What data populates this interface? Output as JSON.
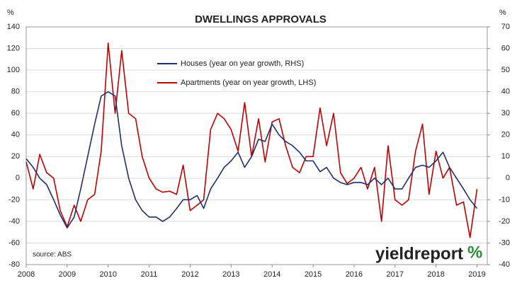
{
  "chart_data": {
    "type": "line",
    "title": "DWELLINGS APPROVALS",
    "y_unit": "%",
    "y2_unit": "%",
    "source": "source: ABS",
    "logo": "yieldreport",
    "logo_mark": "%",
    "x": [
      2008.0,
      2008.17,
      2008.33,
      2008.5,
      2008.67,
      2008.83,
      2009.0,
      2009.17,
      2009.33,
      2009.5,
      2009.67,
      2009.83,
      2010.0,
      2010.17,
      2010.33,
      2010.5,
      2010.67,
      2010.83,
      2011.0,
      2011.17,
      2011.33,
      2011.5,
      2011.67,
      2011.83,
      2012.0,
      2012.17,
      2012.33,
      2012.5,
      2012.67,
      2012.83,
      2013.0,
      2013.17,
      2013.33,
      2013.5,
      2013.67,
      2013.83,
      2014.0,
      2014.17,
      2014.33,
      2014.5,
      2014.67,
      2014.83,
      2015.0,
      2015.17,
      2015.33,
      2015.5,
      2015.67,
      2015.83,
      2016.0,
      2016.17,
      2016.33,
      2016.5,
      2016.67,
      2016.83,
      2017.0,
      2017.17,
      2017.33,
      2017.5,
      2017.67,
      2017.83,
      2018.0,
      2018.17,
      2018.33,
      2018.5,
      2018.67,
      2018.83,
      2019.0
    ],
    "series": [
      {
        "name": "Houses (year on year growth, RHS)",
        "color": "#1f2f6e",
        "axis": "y2",
        "values": [
          9,
          5,
          0,
          -3,
          -10,
          -17,
          -23,
          -18,
          -5,
          10,
          25,
          38,
          40,
          38,
          15,
          0,
          -10,
          -15,
          -18,
          -18,
          -20,
          -18,
          -14,
          -10,
          -10,
          -8,
          -14,
          -5,
          0,
          5,
          8,
          12,
          5,
          10,
          18,
          17,
          25,
          20,
          17,
          15,
          12,
          8,
          8,
          3,
          5,
          0,
          -2,
          -3,
          -2,
          -2,
          -3,
          0,
          -3,
          0,
          -5,
          -5,
          0,
          5,
          6,
          5,
          8,
          12,
          5,
          0,
          -5,
          -10,
          -14
        ]
      },
      {
        "name": "Apartments (year on year growth, LHS)",
        "color": "#c00000",
        "values": [
          15,
          -10,
          22,
          5,
          0,
          -30,
          -45,
          -25,
          -40,
          -20,
          -15,
          25,
          125,
          60,
          118,
          60,
          55,
          20,
          0,
          -10,
          -13,
          -12,
          -15,
          12,
          -30,
          -25,
          -20,
          45,
          60,
          55,
          45,
          25,
          70,
          20,
          55,
          15,
          52,
          55,
          30,
          10,
          5,
          20,
          20,
          65,
          30,
          60,
          5,
          -5,
          0,
          10,
          -10,
          10,
          -40,
          30,
          -20,
          -25,
          -20,
          25,
          50,
          -15,
          25,
          0,
          10,
          -25,
          -22,
          -55,
          -10
        ]
      }
    ],
    "xlim": [
      2008,
      2019.25
    ],
    "xticks": [
      2008,
      2009,
      2010,
      2011,
      2012,
      2013,
      2014,
      2015,
      2016,
      2017,
      2018,
      2019
    ],
    "ylim": [
      -80,
      140
    ],
    "yticks": [
      -80,
      -60,
      -40,
      -20,
      0,
      20,
      40,
      60,
      80,
      100,
      120,
      140
    ],
    "y2lim": [
      -40,
      70
    ],
    "y2ticks": [
      -40,
      -30,
      -20,
      -10,
      0,
      10,
      20,
      30,
      40,
      50,
      60,
      70
    ],
    "grid": true
  }
}
